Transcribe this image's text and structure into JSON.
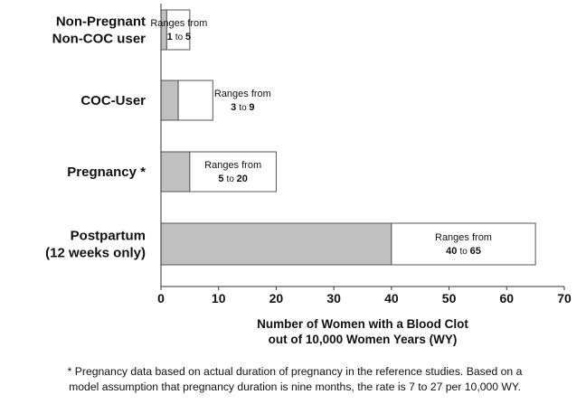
{
  "chart_data": {
    "type": "bar",
    "orientation": "horizontal",
    "stacked": true,
    "categories": [
      [
        "Non-Pregnant",
        "Non-COC user"
      ],
      [
        "COC-User"
      ],
      [
        "Pregnancy *"
      ],
      [
        "Postpartum",
        "(12 weeks only)"
      ]
    ],
    "series": [
      {
        "name": "minimum",
        "color": "#c0c0c0",
        "values": [
          1,
          3,
          5,
          40
        ]
      },
      {
        "name": "range",
        "color": "#ffffff",
        "values": [
          4,
          6,
          15,
          25
        ]
      }
    ],
    "annotations": [
      {
        "line1": "Ranges from",
        "low": "1",
        "sep": "to",
        "high": "5"
      },
      {
        "line1": "Ranges from",
        "low": "3",
        "sep": "to",
        "high": "9"
      },
      {
        "line1": "Ranges from",
        "low": "5",
        "sep": "to",
        "high": "20"
      },
      {
        "line1": "Ranges from",
        "low": "40",
        "sep": "to",
        "high": "65"
      }
    ],
    "xlim": [
      0,
      70
    ],
    "xticks": [
      0,
      10,
      20,
      30,
      40,
      50,
      60,
      70
    ],
    "xlabel": [
      "Number of Women with a  Blood Clot",
      "out of  10,000 Women Years (WY)"
    ],
    "grid": false
  },
  "footnote": {
    "line1": "* Pregnancy data based on actual duration of pregnancy in the reference studies. Based on a",
    "line2": "model assumption that pregnancy duration is nine months, the rate is 7 to 27 per 10,000 WY."
  }
}
